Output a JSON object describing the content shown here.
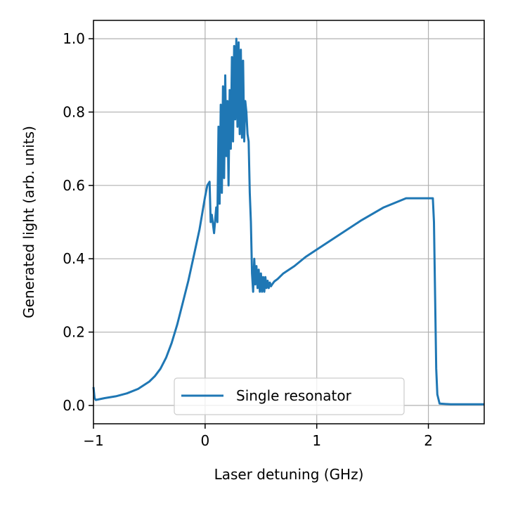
{
  "chart_data": {
    "type": "line",
    "xlabel": "Laser detuning (GHz)",
    "ylabel": "Generated light (arb. units)",
    "xlim": [
      -1,
      2.5
    ],
    "ylim": [
      -0.05,
      1.05
    ],
    "xticks": [
      -1,
      0,
      1,
      2
    ],
    "xtick_labels": [
      "−1",
      "0",
      "1",
      "2"
    ],
    "yticks": [
      0.0,
      0.2,
      0.4,
      0.6,
      0.8,
      1.0
    ],
    "ytick_labels": [
      "0.0",
      "0.2",
      "0.4",
      "0.6",
      "0.8",
      "1.0"
    ],
    "grid": true,
    "legend_position": "lower-center",
    "colors": {
      "series": "#1f77b4",
      "grid": "#b0b0b0",
      "axis": "#000000"
    },
    "series": [
      {
        "name": "Single resonator",
        "x": [
          -1.0,
          -0.99,
          -0.98,
          -0.9,
          -0.8,
          -0.7,
          -0.6,
          -0.5,
          -0.45,
          -0.4,
          -0.35,
          -0.3,
          -0.25,
          -0.2,
          -0.15,
          -0.1,
          -0.05,
          0.0,
          0.02,
          0.04,
          0.05,
          0.06,
          0.08,
          0.1,
          0.11,
          0.12,
          0.13,
          0.14,
          0.15,
          0.16,
          0.17,
          0.18,
          0.19,
          0.2,
          0.21,
          0.22,
          0.23,
          0.24,
          0.25,
          0.26,
          0.27,
          0.28,
          0.29,
          0.3,
          0.31,
          0.32,
          0.33,
          0.34,
          0.35,
          0.36,
          0.37,
          0.38,
          0.39,
          0.4,
          0.41,
          0.42,
          0.43,
          0.44,
          0.45,
          0.46,
          0.47,
          0.48,
          0.49,
          0.5,
          0.51,
          0.52,
          0.53,
          0.54,
          0.55,
          0.56,
          0.57,
          0.58,
          0.59,
          0.6,
          0.62,
          0.65,
          0.7,
          0.8,
          0.9,
          1.0,
          1.2,
          1.4,
          1.6,
          1.8,
          2.0,
          2.04,
          2.05,
          2.06,
          2.07,
          2.08,
          2.1,
          2.2,
          2.5
        ],
        "y": [
          0.05,
          0.02,
          0.015,
          0.02,
          0.025,
          0.033,
          0.045,
          0.065,
          0.08,
          0.1,
          0.13,
          0.17,
          0.22,
          0.28,
          0.34,
          0.41,
          0.48,
          0.57,
          0.6,
          0.61,
          0.5,
          0.52,
          0.47,
          0.54,
          0.5,
          0.76,
          0.55,
          0.82,
          0.58,
          0.87,
          0.62,
          0.9,
          0.68,
          0.83,
          0.6,
          0.86,
          0.7,
          0.95,
          0.72,
          0.98,
          0.78,
          1.0,
          0.76,
          0.99,
          0.74,
          0.97,
          0.73,
          0.94,
          0.72,
          0.83,
          0.8,
          0.74,
          0.72,
          0.58,
          0.5,
          0.36,
          0.31,
          0.4,
          0.33,
          0.38,
          0.32,
          0.37,
          0.31,
          0.36,
          0.31,
          0.35,
          0.31,
          0.35,
          0.32,
          0.34,
          0.32,
          0.335,
          0.325,
          0.33,
          0.338,
          0.345,
          0.36,
          0.38,
          0.405,
          0.425,
          0.465,
          0.505,
          0.54,
          0.565,
          0.565,
          0.565,
          0.5,
          0.3,
          0.1,
          0.03,
          0.005,
          0.003,
          0.003
        ]
      }
    ]
  }
}
